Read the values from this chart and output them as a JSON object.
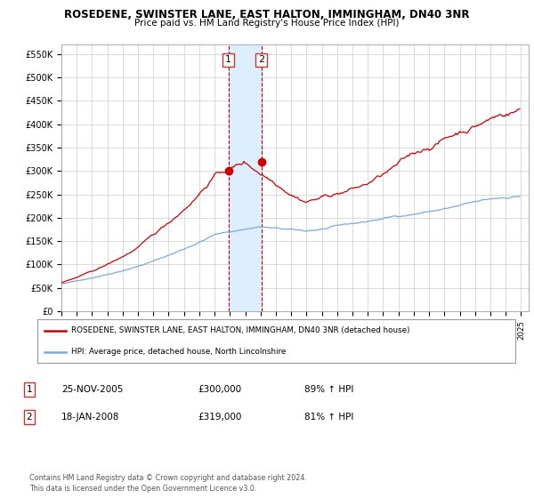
{
  "title1": "ROSEDENE, SWINSTER LANE, EAST HALTON, IMMINGHAM, DN40 3NR",
  "title2": "Price paid vs. HM Land Registry's House Price Index (HPI)",
  "ylim": [
    0,
    570000
  ],
  "yticks": [
    0,
    50000,
    100000,
    150000,
    200000,
    250000,
    300000,
    350000,
    400000,
    450000,
    500000,
    550000
  ],
  "ytick_labels": [
    "£0",
    "£50K",
    "£100K",
    "£150K",
    "£200K",
    "£250K",
    "£300K",
    "£350K",
    "£400K",
    "£450K",
    "£500K",
    "£550K"
  ],
  "xmin": 1995,
  "xmax": 2025.5,
  "sale1_date": 2005.9,
  "sale1_value": 300000,
  "sale1_label": "1",
  "sale2_date": 2008.05,
  "sale2_value": 319000,
  "sale2_label": "2",
  "highlight_start": 2005.9,
  "highlight_end": 2008.05,
  "red_line_color": "#cc0000",
  "blue_line_color": "#7aaadd",
  "highlight_color": "#ddeeff",
  "dashed_line_color": "#cc0000",
  "grid_color": "#cccccc",
  "background_color": "#ffffff",
  "legend_entry1": "ROSEDENE, SWINSTER LANE, EAST HALTON, IMMINGHAM, DN40 3NR (detached house)",
  "legend_entry2": "HPI: Average price, detached house, North Lincolnshire",
  "table_row1_num": "1",
  "table_row1_date": "25-NOV-2005",
  "table_row1_price": "£300,000",
  "table_row1_hpi": "89% ↑ HPI",
  "table_row2_num": "2",
  "table_row2_date": "18-JAN-2008",
  "table_row2_price": "£319,000",
  "table_row2_hpi": "81% ↑ HPI",
  "footer": "Contains HM Land Registry data © Crown copyright and database right 2024.\nThis data is licensed under the Open Government Licence v3.0."
}
